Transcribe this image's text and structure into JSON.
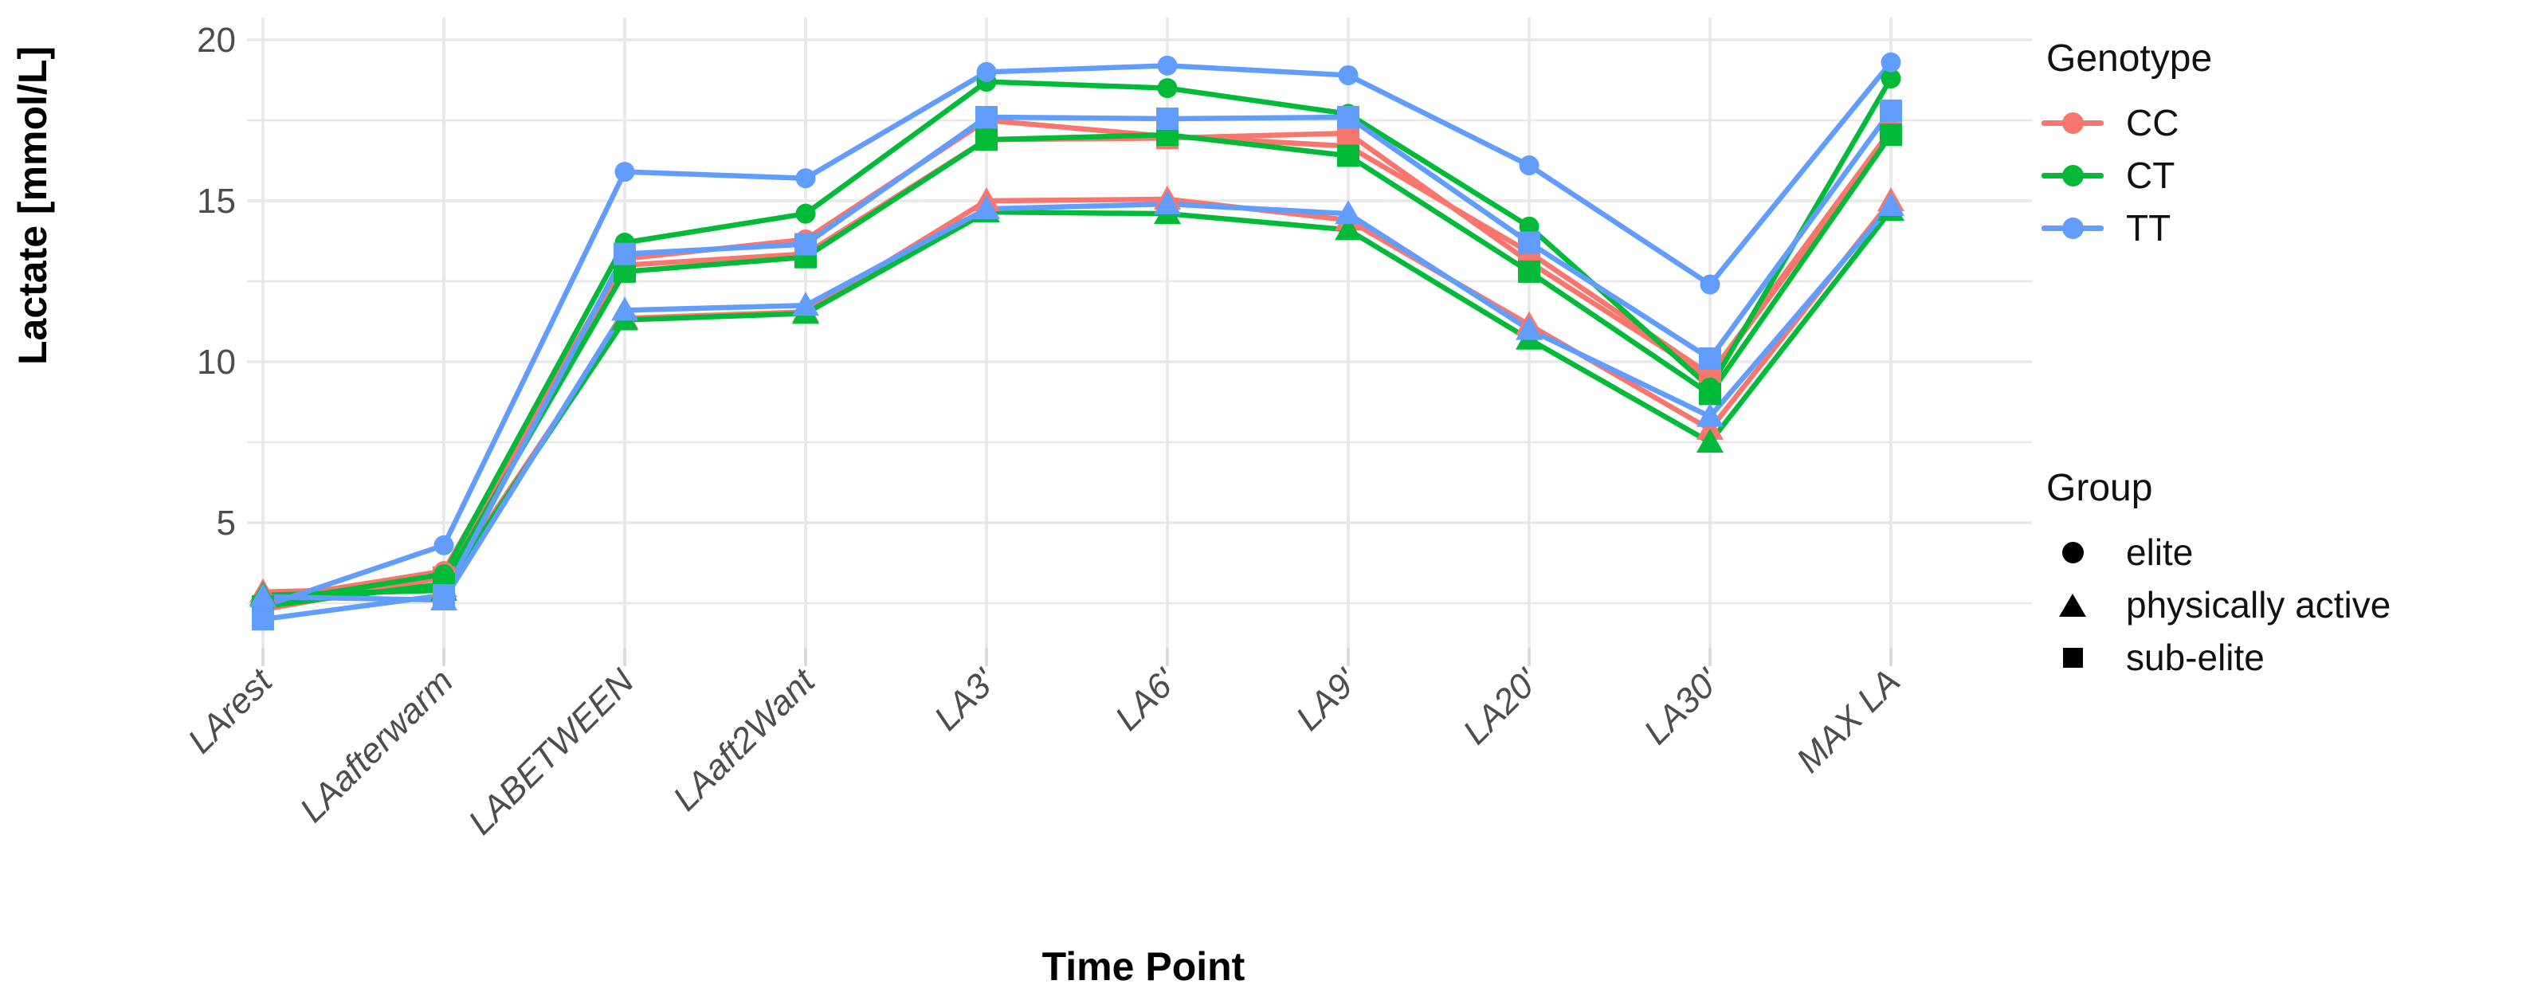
{
  "figure": {
    "background": "#FFFFFF"
  },
  "chart_data": {
    "type": "line",
    "title": "",
    "xlabel": "Time Point",
    "ylabel": "Lactate [mmol/L]",
    "categories": [
      "LArest",
      "LAafterwarm",
      "LABETWEEN",
      "LAaft2Want",
      "LA3'",
      "LA6'",
      "LA9'",
      "LA20'",
      "LA30'",
      "MAX LA"
    ],
    "y_ticks": [
      5,
      10,
      15,
      20
    ],
    "y_minor_ticks": [
      2.5,
      7.5,
      12.5,
      17.5
    ],
    "ylim": [
      1.1,
      20.7
    ],
    "grid": true,
    "legend_position": "right",
    "axis_text_color": "#4D4D4D",
    "gridline_color": "#E8E8E8",
    "series": [
      {
        "name": "CC elite",
        "genotype": "CC",
        "group": "elite",
        "marker": "circle",
        "color": "#F8766D",
        "values": [
          2.6,
          3.5,
          13.2,
          13.8,
          17.5,
          17.0,
          16.7,
          13.4,
          9.6,
          17.2
        ]
      },
      {
        "name": "CC physically active",
        "genotype": "CC",
        "group": "physically active",
        "marker": "triangle",
        "color": "#F8766D",
        "values": [
          2.85,
          3.0,
          11.35,
          11.55,
          15.0,
          15.05,
          14.4,
          11.15,
          7.9,
          15.0
        ]
      },
      {
        "name": "CC sub-elite",
        "genotype": "CC",
        "group": "sub-elite",
        "marker": "square",
        "color": "#F8766D",
        "values": [
          2.3,
          3.3,
          13.0,
          13.35,
          16.9,
          16.95,
          17.1,
          13.1,
          9.5,
          17.1
        ]
      },
      {
        "name": "CT elite",
        "genotype": "CT",
        "group": "elite",
        "marker": "circle",
        "color": "#00BA38",
        "values": [
          2.5,
          3.4,
          13.7,
          14.6,
          18.7,
          18.5,
          17.7,
          14.2,
          9.2,
          18.8
        ]
      },
      {
        "name": "CT physically active",
        "genotype": "CT",
        "group": "physically active",
        "marker": "triangle",
        "color": "#00BA38",
        "values": [
          2.75,
          2.9,
          11.3,
          11.5,
          14.65,
          14.6,
          14.1,
          10.7,
          7.5,
          14.7
        ]
      },
      {
        "name": "CT sub-elite",
        "genotype": "CT",
        "group": "sub-elite",
        "marker": "square",
        "color": "#00BA38",
        "values": [
          2.4,
          3.1,
          12.8,
          13.25,
          16.9,
          17.05,
          16.4,
          12.8,
          9.0,
          17.05
        ]
      },
      {
        "name": "TT elite",
        "genotype": "TT",
        "group": "elite",
        "marker": "circle",
        "color": "#619CFF",
        "values": [
          2.4,
          4.3,
          15.9,
          15.7,
          19.0,
          19.2,
          18.9,
          16.1,
          12.4,
          19.3
        ]
      },
      {
        "name": "TT physically active",
        "genotype": "TT",
        "group": "physically active",
        "marker": "triangle",
        "color": "#619CFF",
        "values": [
          2.7,
          2.6,
          11.6,
          11.75,
          14.75,
          14.9,
          14.6,
          11.0,
          8.3,
          14.85
        ]
      },
      {
        "name": "TT sub-elite",
        "genotype": "TT",
        "group": "sub-elite",
        "marker": "square",
        "color": "#619CFF",
        "values": [
          2.0,
          2.75,
          13.35,
          13.65,
          17.6,
          17.55,
          17.6,
          13.7,
          10.1,
          17.8
        ]
      }
    ],
    "legend": {
      "genotype": {
        "title": "Genotype",
        "entries": [
          {
            "label": "CC",
            "color": "#F8766D"
          },
          {
            "label": "CT",
            "color": "#00BA38"
          },
          {
            "label": "TT",
            "color": "#619CFF"
          }
        ]
      },
      "group": {
        "title": "Group",
        "entries": [
          {
            "label": "elite",
            "marker": "circle"
          },
          {
            "label": "physically active",
            "marker": "triangle"
          },
          {
            "label": "sub-elite",
            "marker": "square"
          }
        ]
      }
    }
  }
}
